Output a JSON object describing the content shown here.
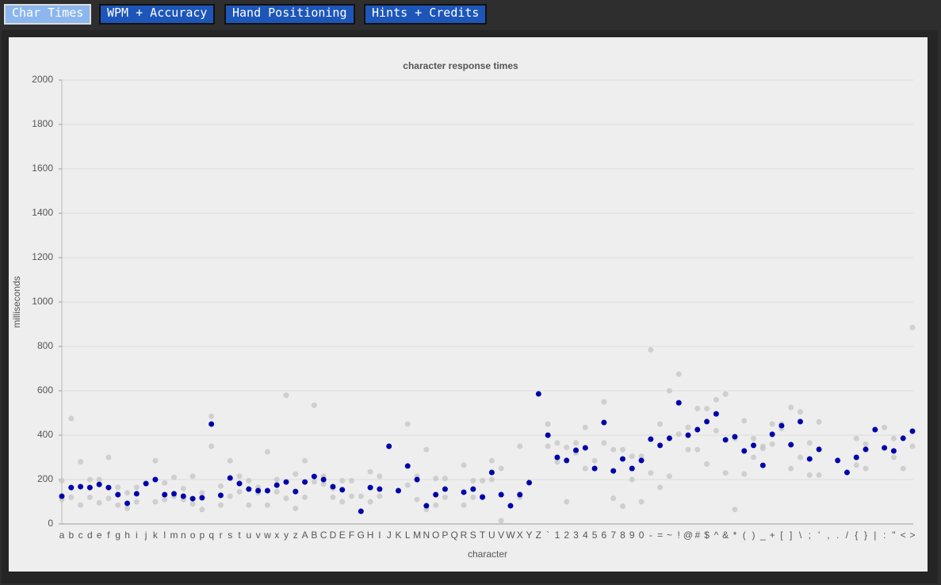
{
  "tabs": [
    "Char Times",
    "WPM + Accuracy",
    "Hand Positioning",
    "Hints + Credits"
  ],
  "chart_data": {
    "type": "scatter",
    "title": "character response times",
    "xlabel": "character",
    "ylabel": "milliseconds",
    "categories": [
      "a",
      "b",
      "c",
      "d",
      "e",
      "f",
      "g",
      "h",
      "i",
      "j",
      "k",
      "l",
      "m",
      "n",
      "o",
      "p",
      "q",
      "r",
      "s",
      "t",
      "u",
      "v",
      "w",
      "x",
      "y",
      "z",
      "A",
      "B",
      "C",
      "D",
      "E",
      "F",
      "G",
      "H",
      "I",
      "J",
      "K",
      "L",
      "M",
      "N",
      "O",
      "P",
      "Q",
      "R",
      "S",
      "T",
      "U",
      "V",
      "W",
      "X",
      "Y",
      "Z",
      "`",
      "1",
      "2",
      "3",
      "4",
      "5",
      "6",
      "7",
      "8",
      "9",
      "0",
      "-",
      "=",
      "~",
      "!",
      "@",
      "#",
      "$",
      "^",
      "&",
      "*",
      "(",
      ")",
      "_",
      "+",
      "[",
      "]",
      "\\",
      ";",
      "'",
      ",",
      ".",
      "/",
      "{",
      "}",
      "|",
      ":",
      "\"",
      "<",
      ">"
    ],
    "series": [
      {
        "color": "#c4c4c4",
        "values": [
          195,
          475,
          280,
          200,
          200,
          300,
          165,
          140,
          165,
          null,
          285,
          185,
          210,
          160,
          215,
          140,
          485,
          170,
          285,
          215,
          195,
          165,
          325,
          200,
          580,
          225,
          285,
          535,
          215,
          160,
          195,
          195,
          125,
          235,
          215,
          null,
          null,
          450,
          215,
          335,
          205,
          205,
          null,
          265,
          195,
          195,
          285,
          250,
          null,
          350,
          null,
          null,
          450,
          365,
          345,
          365,
          435,
          285,
          550,
          335,
          335,
          305,
          305,
          785,
          450,
          600,
          675,
          435,
          520,
          520,
          560,
          585,
          385,
          465,
          385,
          350,
          450,
          450,
          525,
          505,
          365,
          460,
          null,
          null,
          null,
          385,
          360,
          null,
          435,
          385,
          null,
          885
        ]
      },
      {
        "color": "#c4c4c4",
        "values": [
          110,
          120,
          85,
          120,
          95,
          115,
          85,
          70,
          100,
          null,
          100,
          110,
          125,
          110,
          90,
          65,
          350,
          85,
          125,
          145,
          85,
          140,
          85,
          145,
          115,
          70,
          120,
          190,
          180,
          120,
          100,
          125,
          null,
          100,
          125,
          null,
          null,
          175,
          110,
          65,
          85,
          120,
          null,
          85,
          120,
          125,
          200,
          15,
          null,
          120,
          null,
          null,
          350,
          280,
          100,
          320,
          250,
          250,
          365,
          115,
          80,
          200,
          100,
          230,
          165,
          215,
          405,
          335,
          335,
          270,
          420,
          230,
          65,
          225,
          300,
          340,
          360,
          430,
          250,
          300,
          220,
          220,
          null,
          null,
          null,
          265,
          250,
          null,
          null,
          300,
          250,
          350
        ]
      },
      {
        "color": "#0000aa",
        "values": [
          125,
          164,
          168,
          164,
          178,
          164,
          132,
          93,
          136,
          182,
          200,
          132,
          136,
          125,
          114,
          118,
          450,
          129,
          207,
          182,
          157,
          150,
          150,
          175,
          189,
          146,
          189,
          214,
          200,
          168,
          154,
          null,
          57,
          164,
          157,
          350,
          150,
          261,
          200,
          82,
          132,
          157,
          null,
          143,
          157,
          121,
          232,
          132,
          82,
          132,
          186,
          586,
          400,
          300,
          286,
          332,
          343,
          250,
          457,
          239,
          293,
          250,
          286,
          382,
          354,
          386,
          546,
          400,
          425,
          461,
          496,
          379,
          393,
          329,
          354,
          264,
          404,
          443,
          357,
          461,
          293,
          336,
          null,
          286,
          232,
          300,
          336,
          425,
          343,
          329,
          386,
          418
        ]
      }
    ],
    "ylim": [
      0,
      2000
    ],
    "yticks": [
      0,
      200,
      400,
      600,
      800,
      1000,
      1200,
      1400,
      1600,
      1800,
      2000
    ],
    "grid": true
  }
}
